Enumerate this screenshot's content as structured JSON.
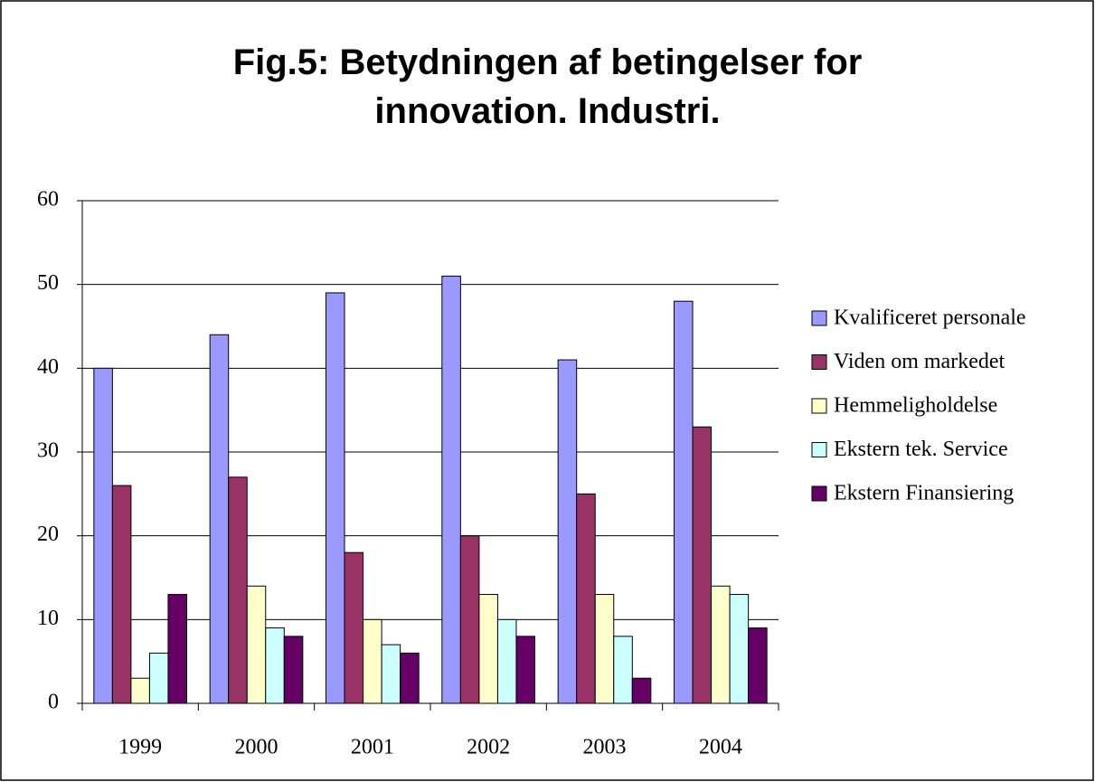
{
  "chart_data": {
    "type": "bar",
    "title": "Fig.5: Betydningen af betingelser for innovation. Industri.",
    "categories": [
      "1999",
      "2000",
      "2001",
      "2002",
      "2003",
      "2004"
    ],
    "series": [
      {
        "name": "Kvalificeret personale",
        "color": "#9999ff",
        "values": [
          40,
          44,
          49,
          51,
          41,
          48
        ]
      },
      {
        "name": "Viden om markedet",
        "color": "#993366",
        "values": [
          26,
          27,
          18,
          20,
          25,
          33
        ]
      },
      {
        "name": "Hemmeligholdelse",
        "color": "#ffffcc",
        "values": [
          3,
          14,
          10,
          13,
          13,
          14
        ]
      },
      {
        "name": "Ekstern tek. Service",
        "color": "#ccffff",
        "values": [
          6,
          9,
          7,
          10,
          8,
          13
        ]
      },
      {
        "name": "Ekstern Finansiering",
        "color": "#660066",
        "values": [
          13,
          8,
          6,
          8,
          3,
          9
        ]
      }
    ],
    "ylim": [
      0,
      60
    ],
    "yticks": [
      0,
      10,
      20,
      30,
      40,
      50,
      60
    ],
    "grid": true,
    "legend": "right"
  }
}
